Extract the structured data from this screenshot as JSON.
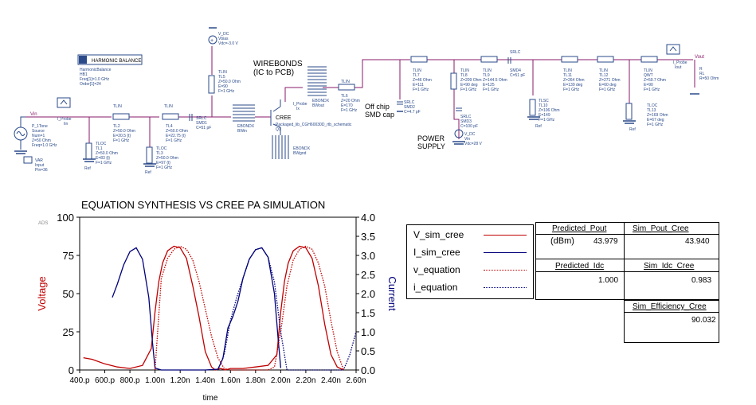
{
  "schematic": {
    "harmonic_balance": {
      "title": "HARMONIC BALANCE",
      "name": "HarmonicBalance",
      "id": "HB1",
      "lines": [
        "Freq[1]=1.0 GHz",
        "Order[1]=24"
      ]
    },
    "source": {
      "lines": [
        "P_1Tone",
        "Source",
        "Num=1",
        "Z=50 Ohm",
        "Freq=1.0 GHz"
      ]
    },
    "var": {
      "title": "VAR",
      "lines": [
        "Input",
        "Pin=36"
      ]
    },
    "probe_in": {
      "lines": [
        "I_Probe",
        "Iin"
      ]
    },
    "vin_label": "Vin",
    "vout_label": "Vout",
    "tlin2": {
      "lines": [
        "TLIN",
        "TL2",
        "Z=50.0 Ohm",
        "E=20.5 {t}",
        "F=1 GHz"
      ]
    },
    "tlin4": {
      "lines": [
        "TLIN",
        "TL4",
        "Z=50.0 Ohm",
        "E=22.75 {t}",
        "F=1 GHz"
      ]
    },
    "tloc1": {
      "lines": [
        "TLOC",
        "TL1",
        "Z=50.0 Ohm",
        "E=83 {t}",
        "F=1 GHz"
      ]
    },
    "tloc3": {
      "lines": [
        "TLOC",
        "TL3",
        "Z=50.0 Ohm",
        "E=97 {t}",
        "F=1 GHz"
      ]
    },
    "srlc_smd1": {
      "lines": [
        "SRLC",
        "SMD1",
        "C=51 pF"
      ]
    },
    "tlin5": {
      "lines": [
        "TLIN",
        "TL5",
        "Z=50.0 Ohm",
        "E=90",
        "F=1 GHz"
      ]
    },
    "vdc_bias": {
      "lines": [
        "V_DC",
        "Vbias",
        "Vdc=-3.0 V"
      ]
    },
    "wirebonds_title": "WIREBONDS",
    "wirebonds_subtitle": "(IC to PCB)",
    "ebondx_out": {
      "lines": [
        "EBONDX",
        "BWout"
      ]
    },
    "ebondx_in": {
      "lines": [
        "EBONDX",
        "BWin"
      ]
    },
    "ebondx_gnd": {
      "lines": [
        "EBONDX",
        "BWgnd"
      ]
    },
    "probe_ix": {
      "lines": [
        "I_Probe",
        "Ix"
      ]
    },
    "cree_label": "CREE",
    "cree_model": "Packaged_lib_CGH60030D_rtb_schematic",
    "q1": "Q1",
    "tlin6": {
      "lines": [
        "TLIN",
        "TL6",
        "Z=20 Ohm",
        "E=170",
        "F=1 GHz"
      ]
    },
    "offchip_title": "Off chip",
    "offchip_subtitle": "SMD cap",
    "srlc_smd2": {
      "lines": [
        "SRLC",
        "SMD2",
        "C=4.7 pF"
      ]
    },
    "tlin7": {
      "lines": [
        "TLIN",
        "TL7",
        "Z=46 Ohm",
        "E=111",
        "F=1 GHz"
      ]
    },
    "tlin8": {
      "lines": [
        "TLIN",
        "TL8",
        "Z=209 Ohm",
        "E=90 deg",
        "F=1 GHz"
      ]
    },
    "tlin9": {
      "lines": [
        "TLIN",
        "TL9",
        "Z=144.5 Ohm",
        "E=125",
        "F=1 GHz"
      ]
    },
    "srlc_smd4": {
      "lines": [
        "SRLC",
        "SMD4",
        "C=51 pF"
      ]
    },
    "srlc_smd3": {
      "lines": [
        "SRLC",
        "SMD3",
        "C=100 pF"
      ]
    },
    "power_supply_title": "POWER",
    "power_supply_subtitle": "SUPPLY",
    "vdc_supply": {
      "lines": [
        "V_DC",
        "Vin",
        "Vdc=28 V"
      ]
    },
    "tlsc10": {
      "lines": [
        "TLSC",
        "TL10",
        "Z=106 Ohm",
        "E=149",
        "F=1 GHz"
      ]
    },
    "tlin11": {
      "lines": [
        "TLIN",
        "TL11",
        "Z=264 Ohm",
        "E=139 deg",
        "F=1 GHz"
      ]
    },
    "tlin12": {
      "lines": [
        "TLIN",
        "TL12",
        "Z=271 Ohm",
        "E=60 deg",
        "F=1 GHz"
      ]
    },
    "qwt": {
      "lines": [
        "TLIN",
        "QWT",
        "Z=59.7 Ohm",
        "E=90",
        "F=1 GHz"
      ]
    },
    "tloc13": {
      "lines": [
        "TLOC",
        "TL13",
        "Z=169 Ohm",
        "E=67 deg",
        "F=1 GHz"
      ]
    },
    "probe_out": {
      "lines": [
        "I_Probe",
        "Iout"
      ]
    },
    "rl": {
      "lines": [
        "R",
        "RL",
        "R=50 Ohm"
      ]
    },
    "ref": "Ref"
  },
  "chart_data": {
    "type": "line",
    "title": "EQUATION SYNTHESIS VS CREE PA SIMULATION",
    "xlabel": "time",
    "ylabel": "Voltage",
    "y2label": "Current",
    "corner_label": "ADS",
    "x_ticks": [
      "400.p",
      "600.p",
      "800.p",
      "1.00n",
      "1.20n",
      "1.40n",
      "1.60n",
      "1.80n",
      "2.00n",
      "2.20n",
      "2.40n",
      "2.60n"
    ],
    "xlim": [
      0.4,
      2.6
    ],
    "ylim": [
      0,
      100
    ],
    "y_ticks": [
      "0",
      "25",
      "50",
      "75",
      "100"
    ],
    "y2lim": [
      0,
      4.0
    ],
    "y2_ticks": [
      "0.0",
      "0.5",
      "1.0",
      "1.5",
      "2.0",
      "2.5",
      "3.0",
      "3.5",
      "4.0"
    ],
    "colors": {
      "voltage": "#c00000",
      "current": "#00007a"
    },
    "series": [
      {
        "name": "V_sim_cree",
        "axis": "left",
        "style": "solid",
        "color": "#c00000",
        "x": [
          0.43,
          0.5,
          0.6,
          0.7,
          0.8,
          0.9,
          0.97,
          1.0,
          1.03,
          1.06,
          1.1,
          1.15,
          1.2,
          1.25,
          1.3,
          1.35,
          1.4,
          1.45,
          1.48,
          1.52,
          1.56,
          1.6,
          1.7,
          1.8,
          1.9,
          1.97,
          2.0,
          2.03,
          2.06,
          2.1,
          2.15,
          2.2,
          2.25,
          2.3,
          2.35,
          2.4,
          2.45,
          2.5
        ],
        "y": [
          8,
          7,
          4,
          2,
          1,
          3,
          14,
          38,
          58,
          70,
          78,
          81,
          80,
          73,
          55,
          35,
          12,
          2,
          0,
          1,
          0,
          1,
          1,
          2,
          3,
          10,
          38,
          58,
          70,
          78,
          81,
          80,
          73,
          55,
          30,
          10,
          2,
          0
        ]
      },
      {
        "name": "I_sim_cree",
        "axis": "right",
        "style": "solid",
        "color": "#00007a",
        "x": [
          0.66,
          0.7,
          0.75,
          0.8,
          0.85,
          0.9,
          0.95,
          0.98,
          1.0,
          1.05,
          1.2,
          1.4,
          1.5,
          1.54,
          1.58,
          1.62,
          1.66,
          1.7,
          1.75,
          1.8,
          1.85,
          1.9,
          1.95,
          1.98,
          2.0
        ],
        "y": [
          1.9,
          2.25,
          2.75,
          3.1,
          3.2,
          2.9,
          1.9,
          0.7,
          0.05,
          0.0,
          0.0,
          0.0,
          0.02,
          0.3,
          1.1,
          1.4,
          1.8,
          2.4,
          2.9,
          3.15,
          3.2,
          2.95,
          2.0,
          0.8,
          0.05
        ]
      },
      {
        "name": "v_equation",
        "axis": "left",
        "style": "dotted",
        "color": "#c00000",
        "x": [
          1.0,
          1.05,
          1.1,
          1.15,
          1.2,
          1.25,
          1.3,
          1.35,
          1.4,
          1.45,
          1.5,
          1.55,
          1.6,
          1.7,
          1.8,
          1.9,
          1.95,
          2.0,
          2.05,
          2.1,
          2.15,
          2.2,
          2.25,
          2.3,
          2.35,
          2.4,
          2.45,
          2.5
        ],
        "y": [
          0,
          60,
          73,
          79,
          81,
          79,
          72,
          58,
          40,
          22,
          8,
          1,
          0,
          0,
          0,
          0,
          2,
          25,
          55,
          72,
          79,
          81,
          79,
          70,
          55,
          32,
          12,
          0
        ]
      },
      {
        "name": "i_equation",
        "axis": "right",
        "style": "dotted",
        "color": "#00007a",
        "x": [
          1.5,
          1.55,
          1.6,
          1.65,
          1.7,
          1.75,
          1.8,
          1.85,
          1.9,
          1.95,
          2.0,
          2.05,
          2.5,
          2.55,
          2.6
        ],
        "y": [
          0.0,
          0.4,
          1.3,
          1.9,
          2.4,
          2.9,
          3.15,
          3.2,
          2.95,
          2.3,
          1.0,
          0.0,
          0.0,
          0.4,
          1.0
        ]
      }
    ],
    "tables": [
      {
        "header": "Predicted_Pout",
        "unit": "(dBm)",
        "value": "43.979"
      },
      {
        "header": "Sim_Pout_Cree",
        "value": "43.940"
      },
      {
        "header": "Predicted_Idc",
        "value": "1.000"
      },
      {
        "header": "Sim_Idc_Cree",
        "value": "0.983"
      },
      {
        "header": "Sim_Efficiency_Cree",
        "value": "90.032"
      }
    ]
  }
}
